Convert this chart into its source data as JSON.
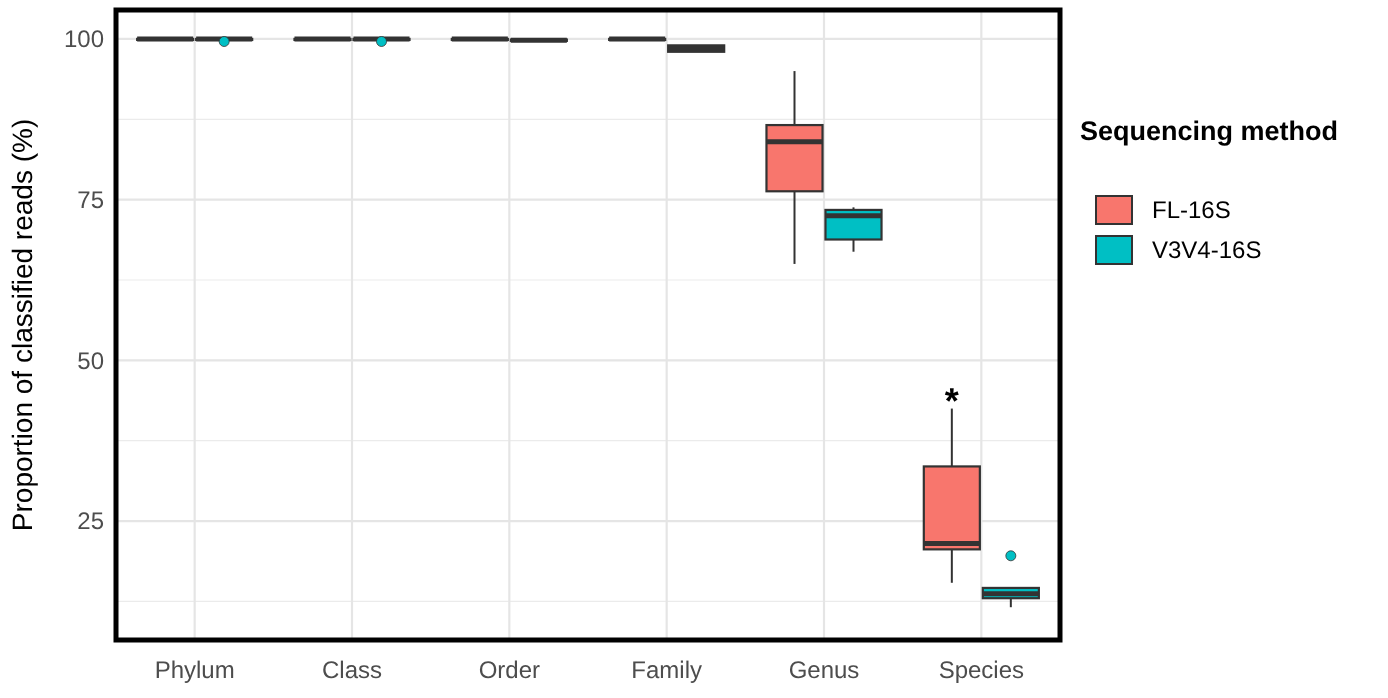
{
  "chart_data": {
    "type": "box",
    "ylabel": "Proportion of classified reads (%)",
    "legend_title": "Sequencing method",
    "legend": "right",
    "grid": true,
    "categories": [
      "Phylum",
      "Class",
      "Order",
      "Family",
      "Genus",
      "Species"
    ],
    "ylim": [
      6.5,
      104.5
    ],
    "yticks": [
      25,
      50,
      75,
      100
    ],
    "series": [
      {
        "name": "FL-16S",
        "color": "#f8766d",
        "boxes": [
          {
            "low": 100,
            "q1": 100,
            "median": 100,
            "q3": 100,
            "high": 100
          },
          {
            "low": 100,
            "q1": 100,
            "median": 100,
            "q3": 100,
            "high": 100
          },
          {
            "low": 100,
            "q1": 100,
            "median": 100,
            "q3": 100,
            "high": 100
          },
          {
            "low": 100,
            "q1": 100,
            "median": 100,
            "q3": 100,
            "high": 100
          },
          {
            "low": 65,
            "q1": 76.3,
            "median": 84,
            "q3": 86.6,
            "high": 95
          },
          {
            "low": 15.4,
            "q1": 20.6,
            "median": 21.5,
            "q3": 33.5,
            "high": 42.5
          }
        ]
      },
      {
        "name": "V3V4-16S",
        "color": "#00bfc4",
        "boxes": [
          {
            "low": 99.9,
            "q1": 99.9,
            "median": 100,
            "q3": 100,
            "high": 100,
            "outliers": [
              99.6
            ]
          },
          {
            "low": 99.9,
            "q1": 99.9,
            "median": 100,
            "q3": 100,
            "high": 100,
            "outliers": [
              99.6
            ]
          },
          {
            "low": 99.7,
            "q1": 99.7,
            "median": 99.8,
            "q3": 99.9,
            "high": 99.9
          },
          {
            "low": 98,
            "q1": 98,
            "median": 98.5,
            "q3": 99,
            "high": 99
          },
          {
            "low": 66.9,
            "q1": 68.8,
            "median": 72.5,
            "q3": 73.4,
            "high": 73.8
          },
          {
            "low": 11.6,
            "q1": 13,
            "median": 13.7,
            "q3": 14.6,
            "high": 14.6,
            "outliers": [
              19.6
            ]
          }
        ]
      }
    ],
    "annotations": [
      "*"
    ]
  }
}
